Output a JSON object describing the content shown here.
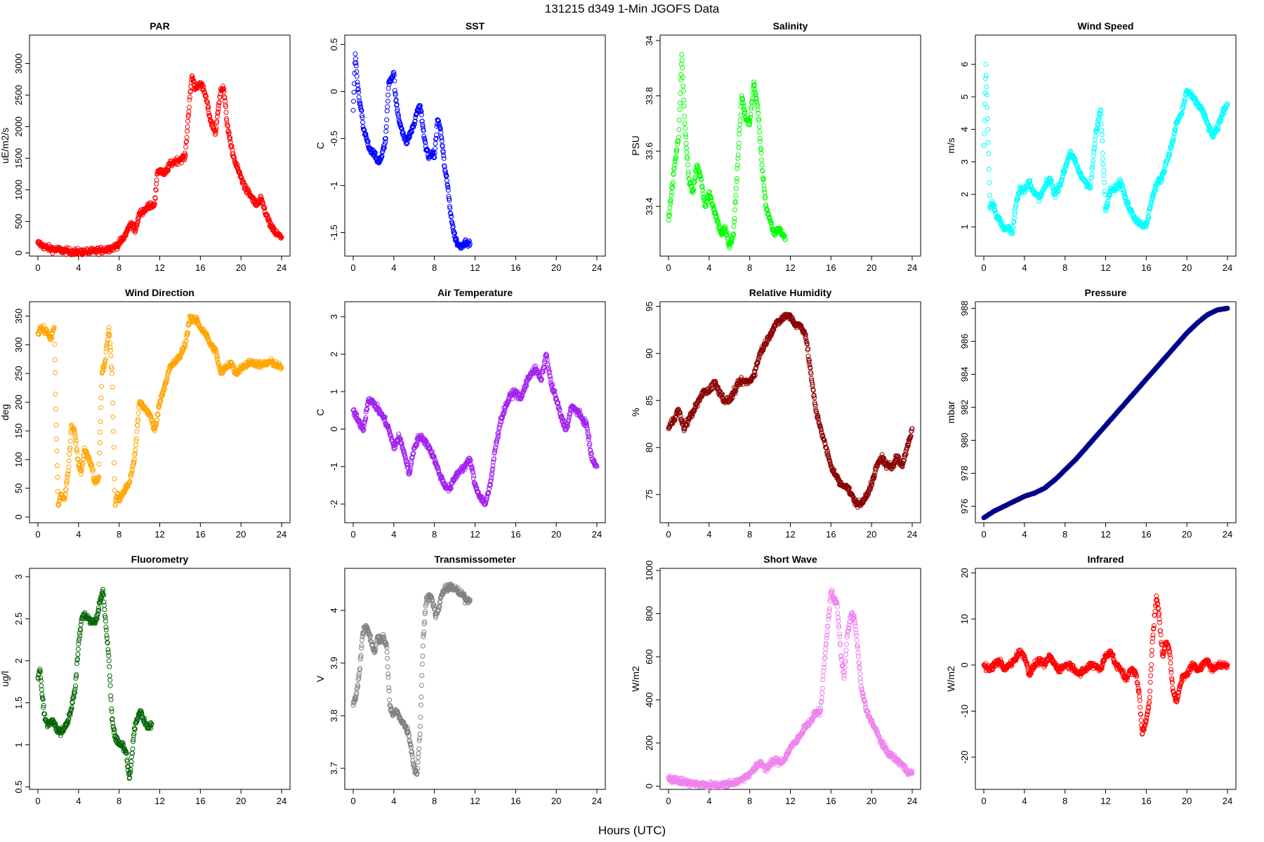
{
  "figure": {
    "title": "131215   d349   1-Min  JGOFS Data",
    "xlabel": "Hours (UTC)"
  },
  "chart_data": [
    {
      "type": "scatter",
      "title": "PAR",
      "ylabel": "uE/m2/s",
      "color": "#ff0000",
      "xlim": [
        0,
        24
      ],
      "xticks": [
        0,
        4,
        8,
        12,
        16,
        20,
        24
      ],
      "ylim": [
        -50,
        3450
      ],
      "yticks": [
        0,
        500,
        1000,
        1500,
        2000,
        2500,
        3000
      ],
      "x": [
        0,
        0.5,
        1,
        1.5,
        2,
        2.5,
        3,
        3.5,
        4,
        4.5,
        5,
        5.5,
        6,
        6.5,
        7,
        7.5,
        8,
        8.5,
        9,
        9.3,
        9.6,
        10,
        10.5,
        11,
        11.5,
        11.8,
        12,
        12.5,
        13,
        13.5,
        14,
        14.5,
        15,
        15.2,
        15.5,
        16,
        16.5,
        17,
        17.5,
        18,
        18.3,
        18.6,
        19,
        19.5,
        20,
        20.5,
        21,
        21.5,
        22,
        22.5,
        23,
        23.5,
        24
      ],
      "y": [
        160,
        110,
        80,
        60,
        50,
        35,
        25,
        20,
        15,
        15,
        20,
        25,
        40,
        50,
        70,
        90,
        150,
        250,
        420,
        470,
        350,
        620,
        680,
        750,
        780,
        1300,
        1310,
        1250,
        1400,
        1450,
        1480,
        1520,
        2550,
        2800,
        2600,
        2700,
        2500,
        2100,
        1900,
        2600,
        2600,
        2100,
        1700,
        1400,
        1200,
        1000,
        900,
        750,
        850,
        600,
        400,
        300,
        250
      ]
    },
    {
      "type": "scatter",
      "title": "SST",
      "ylabel": "C",
      "color": "#0000ff",
      "xlim": [
        0,
        24
      ],
      "xticks": [
        0,
        4,
        8,
        12,
        16,
        20,
        24
      ],
      "ylim": [
        -1.75,
        0.6
      ],
      "yticks": [
        -1.5,
        -1.0,
        -0.5,
        0.0,
        0.5
      ],
      "x": [
        0,
        0.2,
        0.4,
        0.6,
        0.8,
        1,
        1.3,
        1.6,
        2,
        2.4,
        2.8,
        3.2,
        3.5,
        3.8,
        4,
        4.2,
        4.5,
        4.8,
        5.2,
        5.6,
        6,
        6.3,
        6.6,
        7,
        7.4,
        7.8,
        8,
        8.3,
        8.6,
        9,
        9.3,
        9.6,
        9.9,
        10.2,
        10.5,
        10.8,
        11.2,
        11.5
      ],
      "y": [
        -0.2,
        0.4,
        0.1,
        -0.1,
        -0.2,
        -0.4,
        -0.5,
        -0.6,
        -0.65,
        -0.75,
        -0.7,
        -0.5,
        0.1,
        0.15,
        0.2,
        -0.1,
        -0.3,
        -0.4,
        -0.55,
        -0.45,
        -0.35,
        -0.2,
        -0.15,
        -0.5,
        -0.7,
        -0.65,
        -0.7,
        -0.3,
        -0.4,
        -0.8,
        -1.0,
        -1.3,
        -1.5,
        -1.6,
        -1.65,
        -1.62,
        -1.6,
        -1.62
      ]
    },
    {
      "type": "scatter",
      "title": "Salinity",
      "ylabel": "PSU",
      "color": "#00ff00",
      "xlim": [
        0,
        24
      ],
      "xticks": [
        0,
        4,
        8,
        12,
        16,
        20,
        24
      ],
      "ylim": [
        33.22,
        34.02
      ],
      "yticks": [
        33.4,
        33.6,
        33.8,
        34.0
      ],
      "x": [
        0,
        0.3,
        0.6,
        1,
        1.3,
        1.6,
        2,
        2.4,
        2.8,
        3.2,
        3.6,
        4,
        4.4,
        4.8,
        5.2,
        5.6,
        6,
        6.4,
        6.8,
        7.2,
        7.6,
        8,
        8.4,
        8.8,
        9.2,
        9.6,
        10,
        10.4,
        10.8,
        11.2,
        11.5
      ],
      "y": [
        33.35,
        33.45,
        33.55,
        33.65,
        33.95,
        33.7,
        33.5,
        33.45,
        33.55,
        33.5,
        33.4,
        33.45,
        33.4,
        33.35,
        33.3,
        33.32,
        33.25,
        33.3,
        33.55,
        33.8,
        33.72,
        33.7,
        33.85,
        33.75,
        33.55,
        33.4,
        33.35,
        33.3,
        33.32,
        33.3,
        33.28
      ]
    },
    {
      "type": "scatter",
      "title": "Wind Speed",
      "ylabel": "m/s",
      "color": "#00ffff",
      "xlim": [
        0,
        24
      ],
      "xticks": [
        0,
        4,
        8,
        12,
        16,
        20,
        24
      ],
      "ylim": [
        0.1,
        6.9
      ],
      "yticks": [
        1,
        2,
        3,
        4,
        5,
        6
      ],
      "x": [
        0,
        0.2,
        0.4,
        0.6,
        0.9,
        1.2,
        1.6,
        2,
        2.4,
        2.8,
        3.2,
        3.6,
        4,
        4.5,
        5,
        5.5,
        6,
        6.5,
        7,
        7.5,
        8,
        8.5,
        9,
        9.5,
        10,
        10.5,
        11,
        11.5,
        12,
        12.5,
        13,
        13.5,
        14,
        14.5,
        15,
        15.5,
        16,
        16.5,
        17,
        17.5,
        18,
        18.5,
        19,
        19.5,
        20,
        20.5,
        21,
        21.5,
        22,
        22.5,
        23,
        23.5,
        24
      ],
      "y": [
        3.5,
        6.0,
        4.0,
        1.6,
        1.7,
        1.4,
        1.2,
        0.9,
        1.0,
        0.8,
        1.8,
        2.2,
        2.1,
        2.4,
        2.0,
        1.9,
        2.2,
        2.5,
        2.0,
        2.3,
        2.8,
        3.3,
        3.0,
        2.6,
        2.4,
        2.2,
        3.8,
        4.6,
        1.5,
        2.2,
        2.2,
        2.4,
        1.8,
        1.5,
        1.2,
        1.1,
        1.0,
        1.8,
        2.3,
        2.5,
        3.0,
        3.5,
        4.2,
        4.5,
        5.2,
        5.0,
        4.8,
        4.6,
        4.2,
        3.8,
        4.0,
        4.5,
        4.8
      ]
    },
    {
      "type": "scatter",
      "title": "Wind Direction",
      "ylabel": "deg",
      "color": "#ffa500",
      "xlim": [
        0,
        24
      ],
      "xticks": [
        0,
        4,
        8,
        12,
        16,
        20,
        24
      ],
      "ylim": [
        -10,
        375
      ],
      "yticks": [
        0,
        50,
        100,
        150,
        200,
        250,
        300,
        350
      ],
      "x": [
        0,
        0.3,
        0.6,
        1,
        1.3,
        1.6,
        1.8,
        2,
        2.3,
        2.6,
        3,
        3.3,
        3.6,
        4,
        4.3,
        4.6,
        5,
        5.3,
        5.6,
        6,
        6.3,
        6.6,
        7,
        7.3,
        7.6,
        7.8,
        8,
        8.5,
        9,
        9.5,
        10,
        10.5,
        11,
        11.5,
        12,
        12.5,
        13,
        13.5,
        14,
        14.5,
        15,
        15.3,
        15.6,
        16,
        16.5,
        17,
        17.5,
        18,
        18.5,
        19,
        19.5,
        20,
        21,
        22,
        23,
        24
      ],
      "y": [
        320,
        330,
        325,
        320,
        310,
        330,
        160,
        20,
        40,
        30,
        80,
        160,
        150,
        90,
        80,
        120,
        100,
        90,
        60,
        70,
        250,
        270,
        330,
        250,
        20,
        40,
        30,
        45,
        60,
        100,
        200,
        190,
        180,
        150,
        200,
        230,
        260,
        270,
        280,
        300,
        350,
        340,
        345,
        330,
        320,
        300,
        290,
        250,
        260,
        270,
        250,
        260,
        270,
        265,
        270,
        260
      ]
    },
    {
      "type": "scatter",
      "title": "Air Temperature",
      "ylabel": "C",
      "color": "#a020f0",
      "xlim": [
        0,
        24
      ],
      "xticks": [
        0,
        4,
        8,
        12,
        16,
        20,
        24
      ],
      "ylim": [
        -2.5,
        3.4
      ],
      "yticks": [
        -2,
        -1,
        0,
        1,
        2,
        3
      ],
      "x": [
        0,
        0.5,
        1,
        1.5,
        2,
        2.5,
        3,
        3.5,
        4,
        4.5,
        5,
        5.5,
        6,
        6.5,
        7,
        7.5,
        8,
        8.5,
        9,
        9.5,
        10,
        10.5,
        11,
        11.5,
        12,
        12.5,
        13,
        13.5,
        14,
        14.5,
        15,
        15.5,
        16,
        16.5,
        17,
        17.5,
        18,
        18.5,
        19,
        19.5,
        20,
        20.5,
        21,
        21.5,
        22,
        22.5,
        23,
        23.5,
        24
      ],
      "y": [
        0.5,
        0.2,
        0.0,
        0.8,
        0.7,
        0.5,
        0.3,
        0.0,
        -0.5,
        -0.2,
        -0.6,
        -1.2,
        -0.5,
        -0.2,
        -0.3,
        -0.5,
        -0.8,
        -1.2,
        -1.5,
        -1.6,
        -1.3,
        -1.1,
        -1.0,
        -0.8,
        -1.5,
        -1.8,
        -2.0,
        -1.5,
        -0.5,
        0.2,
        0.6,
        0.9,
        1.0,
        0.8,
        1.2,
        1.5,
        1.6,
        1.3,
        2.0,
        1.2,
        0.8,
        0.3,
        0.0,
        0.6,
        0.5,
        0.3,
        0.1,
        -0.8,
        -1.0
      ]
    },
    {
      "type": "scatter",
      "title": "Relative Humidity",
      "ylabel": "%",
      "color": "#8b0000",
      "xlim": [
        0,
        24
      ],
      "xticks": [
        0,
        4,
        8,
        12,
        16,
        20,
        24
      ],
      "ylim": [
        72,
        95.5
      ],
      "yticks": [
        75,
        80,
        85,
        90,
        95
      ],
      "x": [
        0,
        0.5,
        1,
        1.5,
        2,
        2.5,
        3,
        3.5,
        4,
        4.5,
        5,
        5.5,
        6,
        6.5,
        7,
        7.5,
        8,
        8.5,
        9,
        9.5,
        10,
        10.5,
        11,
        11.5,
        12,
        12.5,
        13,
        13.5,
        14,
        14.5,
        15,
        15.5,
        16,
        16.5,
        17,
        17.5,
        18,
        18.5,
        19,
        19.5,
        20,
        20.5,
        21,
        21.5,
        22,
        22.5,
        23,
        23.5,
        24
      ],
      "y": [
        82,
        83,
        84,
        82,
        83,
        84,
        85,
        86,
        86,
        87,
        86,
        85,
        85,
        86,
        87,
        87,
        87,
        88,
        90,
        91,
        92,
        93,
        93.5,
        94,
        94,
        93,
        93,
        92,
        88,
        84,
        82,
        80,
        78,
        77,
        76,
        76,
        75,
        74,
        74,
        75,
        76,
        78,
        79,
        78,
        78,
        79,
        78,
        80,
        82
      ]
    },
    {
      "type": "scatter",
      "title": "Pressure",
      "ylabel": "mbar",
      "color": "#00008b",
      "xlim": [
        0,
        24
      ],
      "xticks": [
        0,
        4,
        8,
        12,
        16,
        20,
        24
      ],
      "ylim": [
        975,
        988.4
      ],
      "yticks": [
        976,
        978,
        980,
        982,
        984,
        986,
        988
      ],
      "x": [
        0,
        1,
        2,
        3,
        4,
        5,
        6,
        7,
        8,
        9,
        10,
        11,
        12,
        13,
        14,
        15,
        16,
        17,
        18,
        19,
        20,
        21,
        22,
        23,
        24
      ],
      "y": [
        975.3,
        975.7,
        976.0,
        976.3,
        976.6,
        976.8,
        977.1,
        977.6,
        978.2,
        978.8,
        979.5,
        980.2,
        980.9,
        981.6,
        982.3,
        983.0,
        983.7,
        984.4,
        985.1,
        985.8,
        986.5,
        987.1,
        987.6,
        987.9,
        988.0
      ]
    },
    {
      "type": "scatter",
      "title": "Fluorometry",
      "ylabel": "ug/l",
      "color": "#006400",
      "xlim": [
        0,
        24
      ],
      "xticks": [
        0,
        4,
        8,
        12,
        16,
        20,
        24
      ],
      "ylim": [
        0.47,
        3.1
      ],
      "yticks": [
        0.5,
        1.0,
        1.5,
        2.0,
        2.5,
        3.0
      ],
      "x": [
        0,
        0.2,
        0.4,
        0.7,
        1,
        1.4,
        1.8,
        2.2,
        2.6,
        3,
        3.4,
        3.7,
        4,
        4.3,
        4.6,
        5,
        5.4,
        5.8,
        6.1,
        6.4,
        6.7,
        7,
        7.3,
        7.6,
        8,
        8.4,
        8.7,
        9,
        9.2,
        9.5,
        9.8,
        10.1,
        10.4,
        10.8,
        11.2
      ],
      "y": [
        1.8,
        1.9,
        1.6,
        1.3,
        1.25,
        1.3,
        1.2,
        1.15,
        1.2,
        1.3,
        1.5,
        1.7,
        2.2,
        2.5,
        2.55,
        2.5,
        2.45,
        2.5,
        2.7,
        2.85,
        2.4,
        2.0,
        1.3,
        1.1,
        1.0,
        1.0,
        0.9,
        0.6,
        0.8,
        1.2,
        1.3,
        1.4,
        1.3,
        1.2,
        1.25
      ]
    },
    {
      "type": "scatter",
      "title": "Transmissometer",
      "ylabel": "V",
      "color": "#808080",
      "xlim": [
        0,
        24
      ],
      "xticks": [
        0,
        4,
        8,
        12,
        16,
        20,
        24
      ],
      "ylim": [
        3.66,
        4.08
      ],
      "yticks": [
        3.7,
        3.8,
        3.9,
        4.0
      ],
      "x": [
        0,
        0.3,
        0.6,
        0.9,
        1.2,
        1.5,
        1.8,
        2.1,
        2.4,
        2.7,
        3,
        3.3,
        3.6,
        3.9,
        4.2,
        4.5,
        4.8,
        5.1,
        5.4,
        5.7,
        6,
        6.3,
        6.6,
        6.9,
        7.2,
        7.5,
        7.8,
        8.1,
        8.4,
        8.7,
        9,
        9.3,
        9.6,
        9.9,
        10.2,
        10.5,
        10.8,
        11.1,
        11.5
      ],
      "y": [
        3.82,
        3.84,
        3.88,
        3.95,
        3.97,
        3.96,
        3.94,
        3.92,
        3.95,
        3.94,
        3.95,
        3.93,
        3.82,
        3.8,
        3.81,
        3.8,
        3.79,
        3.78,
        3.77,
        3.74,
        3.7,
        3.69,
        3.78,
        3.95,
        4.02,
        4.03,
        4.02,
        3.99,
        4.0,
        4.03,
        4.04,
        4.04,
        4.05,
        4.04,
        4.04,
        4.03,
        4.03,
        4.02,
        4.02
      ]
    },
    {
      "type": "scatter",
      "title": "Short Wave",
      "ylabel": "W/m2",
      "color": "#ee82ee",
      "xlim": [
        0,
        24
      ],
      "xticks": [
        0,
        4,
        8,
        12,
        16,
        20,
        24
      ],
      "ylim": [
        -15,
        1010
      ],
      "yticks": [
        0,
        200,
        400,
        600,
        800,
        1000
      ],
      "x": [
        0,
        0.5,
        1,
        1.5,
        2,
        2.5,
        3,
        3.5,
        4,
        4.5,
        5,
        5.5,
        6,
        6.5,
        7,
        7.5,
        8,
        8.5,
        9,
        9.3,
        9.6,
        10,
        10.5,
        11,
        11.5,
        12,
        12.5,
        13,
        13.5,
        14,
        14.5,
        15,
        15.3,
        15.6,
        16,
        16.3,
        16.6,
        17,
        17.3,
        17.6,
        18,
        18.3,
        18.6,
        19,
        19.5,
        20,
        20.5,
        21,
        21.5,
        22,
        22.5,
        23,
        23.5,
        24
      ],
      "y": [
        40,
        30,
        25,
        20,
        15,
        10,
        8,
        6,
        5,
        5,
        6,
        8,
        12,
        18,
        25,
        40,
        60,
        80,
        110,
        100,
        80,
        100,
        120,
        110,
        130,
        180,
        200,
        240,
        280,
        300,
        340,
        350,
        550,
        700,
        900,
        870,
        850,
        600,
        500,
        700,
        800,
        780,
        650,
        450,
        350,
        300,
        250,
        200,
        160,
        140,
        120,
        100,
        70,
        60
      ]
    },
    {
      "type": "scatter",
      "title": "Infrared",
      "ylabel": "W/m2",
      "color": "#ff0000",
      "xlim": [
        0,
        24
      ],
      "xticks": [
        0,
        4,
        8,
        12,
        16,
        20,
        24
      ],
      "ylim": [
        -27,
        21
      ],
      "yticks": [
        -20,
        -10,
        0,
        10,
        20
      ],
      "x": [
        0,
        0.5,
        1,
        1.5,
        2,
        2.5,
        3,
        3.5,
        4,
        4.5,
        5,
        5.5,
        6,
        6.5,
        7,
        7.5,
        8,
        8.5,
        9,
        9.5,
        10,
        10.5,
        11,
        11.5,
        12,
        12.5,
        13,
        13.5,
        14,
        14.5,
        15,
        15.3,
        15.6,
        16,
        16.3,
        16.6,
        17,
        17.3,
        17.6,
        18,
        18.3,
        18.6,
        19,
        19.5,
        20,
        20.5,
        21,
        21.5,
        22,
        22.5,
        23,
        23.5,
        24
      ],
      "y": [
        0,
        -1,
        0,
        1,
        -1,
        0,
        1,
        3,
        2,
        -2,
        0,
        1,
        0,
        2,
        0,
        -1,
        0,
        0,
        -1,
        -2,
        -1,
        0,
        0,
        -1,
        2,
        3,
        0,
        -1,
        -3,
        -1,
        -2,
        -6,
        -15,
        -12,
        -8,
        5,
        15,
        10,
        2,
        5,
        3,
        -5,
        -8,
        -3,
        -2,
        0,
        -1,
        0,
        1,
        -1,
        0,
        0,
        0
      ]
    }
  ]
}
